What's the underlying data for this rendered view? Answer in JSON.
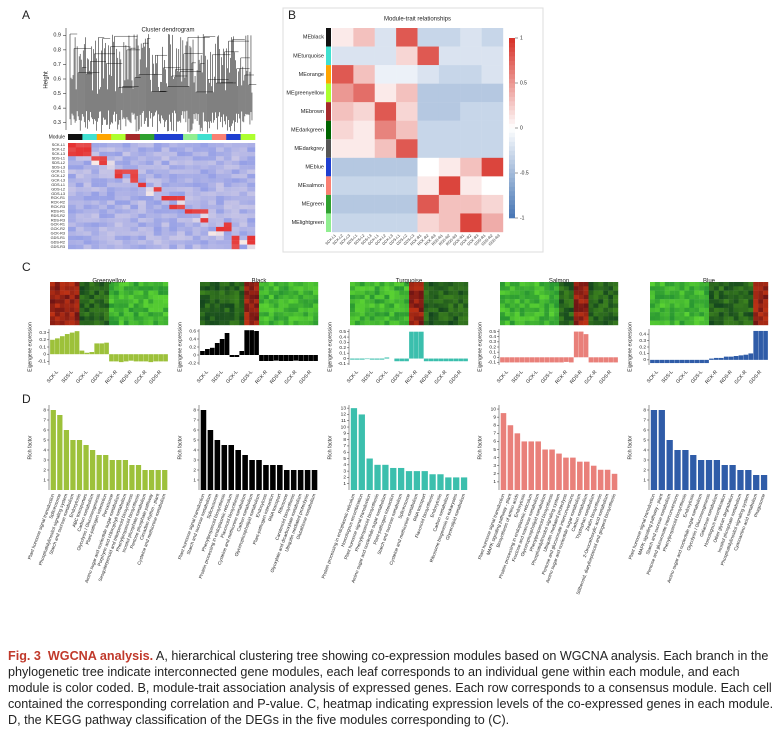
{
  "panels": [
    "A",
    "B",
    "C",
    "D"
  ],
  "samples": [
    "SCK-L1",
    "SCK-L2",
    "SCK-L3",
    "SDS-L1",
    "SDS-L2",
    "SDS-L3",
    "GCK-L1",
    "GCK-L2",
    "GCK-L3",
    "GDS-L1",
    "GDS-L2",
    "GDS-L3",
    "RCK-R1",
    "RCK-R2",
    "RCK-R3",
    "RDS-R1",
    "RDS-R2",
    "RDS-R3",
    "GCK-R1",
    "GCK-R2",
    "GCK-R3",
    "GDS-R1",
    "GDS-R2",
    "GDS-R3"
  ],
  "dendrogram": {
    "title": "Cluster dendrogram",
    "ylabel": "Height",
    "ylim": [
      0.25,
      0.95
    ],
    "yticks": [
      0.3,
      0.4,
      0.5,
      0.6,
      0.7,
      0.8,
      0.9
    ],
    "module_label": "Module"
  },
  "module_trait": {
    "title": "Module-trait relationships",
    "modules": [
      {
        "name": "MEblack",
        "color": "#111111"
      },
      {
        "name": "MEturquoise",
        "color": "#40e0d0"
      },
      {
        "name": "MEorange",
        "color": "#ffa500"
      },
      {
        "name": "MEgreenyellow",
        "color": "#adff2f"
      },
      {
        "name": "MEbrown",
        "color": "#a52a2a"
      },
      {
        "name": "MEdarkgreen",
        "color": "#006400"
      },
      {
        "name": "MEdarkgrey",
        "color": "#555555"
      },
      {
        "name": "MEblue",
        "color": "#1f3fd0"
      },
      {
        "name": "MEsalmon",
        "color": "#fa8072"
      },
      {
        "name": "MEgreen",
        "color": "#2fa02f"
      },
      {
        "name": "MElightgreen",
        "color": "#90ee90"
      }
    ],
    "groups": [
      "SCK-L",
      "SDS-L",
      "GCK-L",
      "GDS-L",
      "RCK-R",
      "RDS-R",
      "GCK-R",
      "GDS-R"
    ],
    "matrix": [
      [
        0.1,
        0.3,
        -0.2,
        0.8,
        -0.3,
        -0.3,
        -0.2,
        -0.3
      ],
      [
        -0.2,
        -0.2,
        -0.2,
        0.2,
        0.8,
        -0.2,
        -0.2,
        -0.2
      ],
      [
        0.8,
        0.3,
        -0.1,
        -0.1,
        -0.2,
        -0.3,
        -0.3,
        -0.2
      ],
      [
        0.5,
        0.7,
        0.1,
        0.3,
        -0.4,
        -0.4,
        -0.4,
        -0.4
      ],
      [
        0.3,
        0.2,
        0.8,
        0.2,
        -0.4,
        -0.4,
        -0.3,
        -0.3
      ],
      [
        0.2,
        0.1,
        0.6,
        0.3,
        -0.3,
        -0.3,
        -0.3,
        -0.3
      ],
      [
        0.1,
        0.1,
        0.3,
        0.8,
        -0.3,
        -0.3,
        -0.3,
        -0.3
      ],
      [
        -0.4,
        -0.4,
        -0.4,
        -0.4,
        0.0,
        0.1,
        0.3,
        0.9
      ],
      [
        -0.3,
        -0.3,
        -0.3,
        -0.3,
        0.1,
        0.9,
        0.1,
        0.0
      ],
      [
        -0.4,
        -0.4,
        -0.4,
        -0.4,
        0.8,
        0.3,
        0.3,
        0.2
      ],
      [
        -0.3,
        -0.3,
        -0.3,
        -0.3,
        0.2,
        0.3,
        0.9,
        0.4
      ]
    ],
    "clim": [
      -1,
      1
    ],
    "cticks": [
      -1,
      -0.5,
      0,
      0.5,
      1
    ]
  },
  "chart_data": [
    {
      "type": "bar",
      "title": "Greenyellow",
      "ylabel": "Eigengene expression",
      "color": "#9dc13a",
      "categories": [
        null,
        "SCK-L",
        null,
        null,
        "SDS-L",
        null,
        null,
        "GCK-L",
        null,
        null,
        "GDS-L",
        null,
        null,
        "RCK-R",
        null,
        null,
        "RDS-R",
        null,
        null,
        "GCK-R",
        null,
        null,
        "GDS-R",
        null
      ],
      "values": [
        0.2,
        0.22,
        0.25,
        0.28,
        0.3,
        0.32,
        0.05,
        0.02,
        0.03,
        0.15,
        0.15,
        0.16,
        -0.1,
        -0.1,
        -0.11,
        -0.1,
        -0.09,
        -0.1,
        -0.1,
        -0.1,
        -0.11,
        -0.1,
        -0.1,
        -0.1
      ],
      "ylim": [
        -0.15,
        0.35
      ],
      "yticks": [
        -0.1,
        0,
        0.1,
        0.2,
        0.3
      ]
    },
    {
      "type": "bar",
      "title": "Black",
      "ylabel": "Eigengene expression",
      "color": "#000000",
      "categories": [
        null,
        "SCK-L",
        null,
        null,
        "SDS-L",
        null,
        null,
        "GCK-L",
        null,
        null,
        "GDS-L",
        null,
        null,
        "RCK-R",
        null,
        null,
        "RDS-R",
        null,
        null,
        "GCK-R",
        null,
        null,
        "GDS-R",
        null
      ],
      "values": [
        0.1,
        0.15,
        0.18,
        0.3,
        0.4,
        0.55,
        -0.05,
        -0.05,
        0.1,
        0.62,
        0.62,
        0.6,
        -0.15,
        -0.15,
        -0.15,
        -0.14,
        -0.15,
        -0.15,
        -0.15,
        -0.14,
        -0.15,
        -0.15,
        -0.15,
        -0.15
      ],
      "ylim": [
        -0.25,
        0.65
      ],
      "yticks": [
        -0.2,
        0,
        0.2,
        0.4,
        0.6
      ]
    },
    {
      "type": "bar",
      "title": "Turquoise",
      "ylabel": "Eigengene expression",
      "color": "#3bbfad",
      "categories": [
        null,
        "SCK-L",
        null,
        null,
        "SDS-L",
        null,
        null,
        "GCK-L",
        null,
        null,
        "GDS-L",
        null,
        null,
        "RCK-R",
        null,
        null,
        "RDS-R",
        null,
        null,
        "GCK-R",
        null,
        null,
        "GDS-R",
        null
      ],
      "values": [
        -0.02,
        -0.02,
        -0.02,
        -0.01,
        -0.02,
        -0.02,
        -0.02,
        0.02,
        0.0,
        -0.05,
        -0.05,
        -0.05,
        0.5,
        0.5,
        0.5,
        -0.05,
        -0.05,
        -0.05,
        -0.05,
        -0.05,
        -0.05,
        -0.05,
        -0.05,
        -0.05
      ],
      "ylim": [
        -0.12,
        0.55
      ],
      "yticks": [
        -0.1,
        0,
        0.1,
        0.2,
        0.3,
        0.4,
        0.5
      ]
    },
    {
      "type": "bar",
      "title": "Salmon",
      "ylabel": "Eigengene expression",
      "color": "#e9807a",
      "categories": [
        null,
        "SCK-L",
        null,
        null,
        "SDS-L",
        null,
        null,
        "GCK-L",
        null,
        null,
        "GDS-L",
        null,
        null,
        "RCK-R",
        null,
        null,
        "RDS-R",
        null,
        null,
        "GCK-R",
        null,
        null,
        "GDS-R",
        null
      ],
      "values": [
        -0.1,
        -0.1,
        -0.1,
        -0.1,
        -0.1,
        -0.1,
        -0.1,
        -0.1,
        -0.1,
        -0.1,
        -0.1,
        -0.1,
        -0.1,
        -0.09,
        -0.1,
        0.5,
        0.5,
        0.45,
        -0.1,
        -0.1,
        -0.1,
        -0.1,
        -0.1,
        -0.1
      ],
      "ylim": [
        -0.15,
        0.55
      ],
      "yticks": [
        -0.1,
        0,
        0.1,
        0.2,
        0.3,
        0.4,
        0.5
      ]
    },
    {
      "type": "bar",
      "title": "Blue",
      "ylabel": "Eigengene expression",
      "color": "#2f5ca8",
      "categories": [
        null,
        "SCK-L",
        null,
        null,
        "SDS-L",
        null,
        null,
        "GCK-L",
        null,
        null,
        "GDS-L",
        null,
        null,
        "RCK-R",
        null,
        null,
        "RDS-R",
        null,
        null,
        "GCK-R",
        null,
        null,
        "GDS-R",
        null
      ],
      "values": [
        -0.05,
        -0.05,
        -0.05,
        -0.05,
        -0.05,
        -0.05,
        -0.05,
        -0.05,
        -0.05,
        -0.05,
        -0.05,
        -0.05,
        0.02,
        0.03,
        0.03,
        0.05,
        0.05,
        0.06,
        0.07,
        0.08,
        0.1,
        0.45,
        0.45,
        0.45
      ],
      "ylim": [
        -0.08,
        0.48
      ],
      "yticks": [
        0,
        0.1,
        0.2,
        0.3,
        0.4
      ]
    },
    {
      "type": "bar",
      "ylabel": "Rich factor",
      "color": "#9dc13a",
      "categories": [
        "Plant hormone signal transduction",
        "Spliceosome",
        "Phosphatidylinositol signaling system",
        "Starch and sucrose metabolism",
        "Endocytosis",
        "ABC transporters",
        "Carbon metabolism",
        "Glycolysis / Gluconeogenesis",
        "Plant-pathogen interaction",
        "Peroxisome",
        "Amino sugar and nucleotide sugar metabolism",
        "Porphyrin and chlorophyll metabolism",
        "Sesquiterpenoid and triterpenoid biosynthesis",
        "Phenylpropanoid biosynthesis",
        "Inositol phosphate metabolism",
        "Pentose phosphate pathway",
        "Circadian rhythm - plant",
        "Cysteine and methionine metabolism"
      ],
      "values": [
        8,
        7.5,
        6,
        5,
        5,
        4.5,
        4,
        3.5,
        3.5,
        3,
        3,
        3,
        2.5,
        2.5,
        2,
        2,
        2,
        2
      ],
      "ylim": [
        0,
        8.5
      ],
      "yticks": [
        1,
        2,
        3,
        4,
        5,
        6,
        7,
        8
      ]
    },
    {
      "type": "bar",
      "ylabel": "Rich factor",
      "color": "#000000",
      "categories": [
        "Plant hormone signal transduction",
        "Starch and sucrose metabolism",
        "Spliceosome",
        "Phenylpropanoid biosynthesis",
        "Protein processing in endoplasmic reticulum",
        "Flavonoid biosynthesis",
        "Cysteine and methionine metabolism",
        "Carbon metabolism",
        "Glycerophospholipid metabolism",
        "Endocytosis",
        "Plant-pathogen interaction",
        "RNA transport",
        "Ribosome",
        "Carotenoid biosynthesis",
        "Glyoxylate and dicarboxylate metabolism",
        "Ubiquitin mediated proteolysis",
        "Glutathione metabolism"
      ],
      "values": [
        8,
        6,
        5,
        4.5,
        4.5,
        4,
        3.5,
        3,
        3,
        2.5,
        2.5,
        2.5,
        2,
        2,
        2,
        2,
        2
      ],
      "ylim": [
        0,
        8.5
      ],
      "yticks": [
        1,
        2,
        3,
        4,
        5,
        6,
        7,
        8
      ]
    },
    {
      "type": "bar",
      "ylabel": "Rich factor",
      "color": "#3bbfad",
      "categories": [
        "Protein processing in endoplasmic reticulum",
        "Homologous recombination",
        "Plant hormone signal transduction",
        "Phenylpropanoid biosynthesis",
        "Amino sugar and nucleotide sugar metabolism",
        "Plant-pathogen interaction",
        "Starch and sucrose metabolism",
        "Spliceosome",
        "Cysteine and methionine metabolism",
        "RNA transport",
        "Flavonoid biosynthesis",
        "Endocytosis",
        "Carbon metabolism",
        "Ribosome biogenesis in eukaryotes",
        "Glycerolipid metabolism"
      ],
      "values": [
        13,
        12,
        5,
        4,
        4,
        3.5,
        3.5,
        3,
        3,
        3,
        2.5,
        2.5,
        2,
        2,
        2
      ],
      "ylim": [
        0,
        13.5
      ],
      "yticks": [
        1,
        2,
        3,
        4,
        5,
        6,
        7,
        8,
        9,
        10,
        11,
        12,
        13
      ]
    },
    {
      "type": "bar",
      "ylabel": "Rich factor",
      "color": "#e9807a",
      "categories": [
        "Plant hormone signal transduction",
        "MAPK signaling pathway - plant",
        "Biosynthesis of amino acids",
        "Endocytosis",
        "Protein processing in endoplasmic reticulum",
        "Fructose and mannose metabolism",
        "Glycerophospholipid metabolism",
        "Phenylpropanoid biosynthesis",
        "Phosphatidylinositol signaling system",
        "Ubiquitin mediated proteolysis",
        "Pentose and glucuronate interconversions",
        "Amino sugar and nucleotide sugar metabolism",
        "Carbon metabolism",
        "Tryptophan metabolism",
        "Zeatin biosynthesis",
        "2-Oxocarboxylic acid metabolism",
        "Stilbenoid, diarylheptanoid and gingerol biosynthesis"
      ],
      "values": [
        9.5,
        8,
        7,
        6,
        6,
        6,
        5,
        5,
        4.5,
        4,
        4,
        3.5,
        3.5,
        3,
        2.5,
        2.5,
        2
      ],
      "ylim": [
        0,
        10.5
      ],
      "yticks": [
        1,
        2,
        3,
        4,
        5,
        6,
        7,
        8,
        9,
        10
      ]
    },
    {
      "type": "bar",
      "ylabel": "Rich factor",
      "color": "#2f5ca8",
      "categories": [
        "Plant hormone signal transduction",
        "MAPK signaling pathway - plant",
        "Starch and sucrose metabolism",
        "Pentose and glucuronate interconversions",
        "Phenylpropanoid biosynthesis",
        "Endocytosis",
        "Amino sugar and nucleotide sugar metabolism",
        "Glycolysis / Gluconeogenesis",
        "Galactose metabolism",
        "Homologous recombination",
        "Other glycan degradation",
        "Inositol phosphate metabolism",
        "Phosphatidylinositol signaling system",
        "Cyanoamino acid metabolism",
        "Phagosome"
      ],
      "values": [
        8,
        8,
        5,
        4,
        4,
        3.5,
        3,
        3,
        3,
        2.5,
        2.5,
        2,
        2,
        1.5,
        1.5
      ],
      "ylim": [
        0,
        8.5
      ],
      "yticks": [
        1,
        2,
        3,
        4,
        5,
        6,
        7,
        8
      ]
    }
  ],
  "caption": {
    "label": "Fig. 3",
    "title": "WGCNA analysis.",
    "text": "A, hierarchical clustering tree showing co-expression modules based on WGCNA analysis. Each branch in the phylogenetic tree indicate interconnected gene modules, each leaf corresponds to an individual gene within each module, and each module is color coded. B, module-trait association analysis of expressed genes. Each row corresponds to a consensus module. Each cell contained the corresponding correlation and P-value. C, heatmap indicating expression levels of the co-expressed genes in each module. D, the KEGG pathway classification of the DEGs in the five modules corresponding to (C)."
  }
}
